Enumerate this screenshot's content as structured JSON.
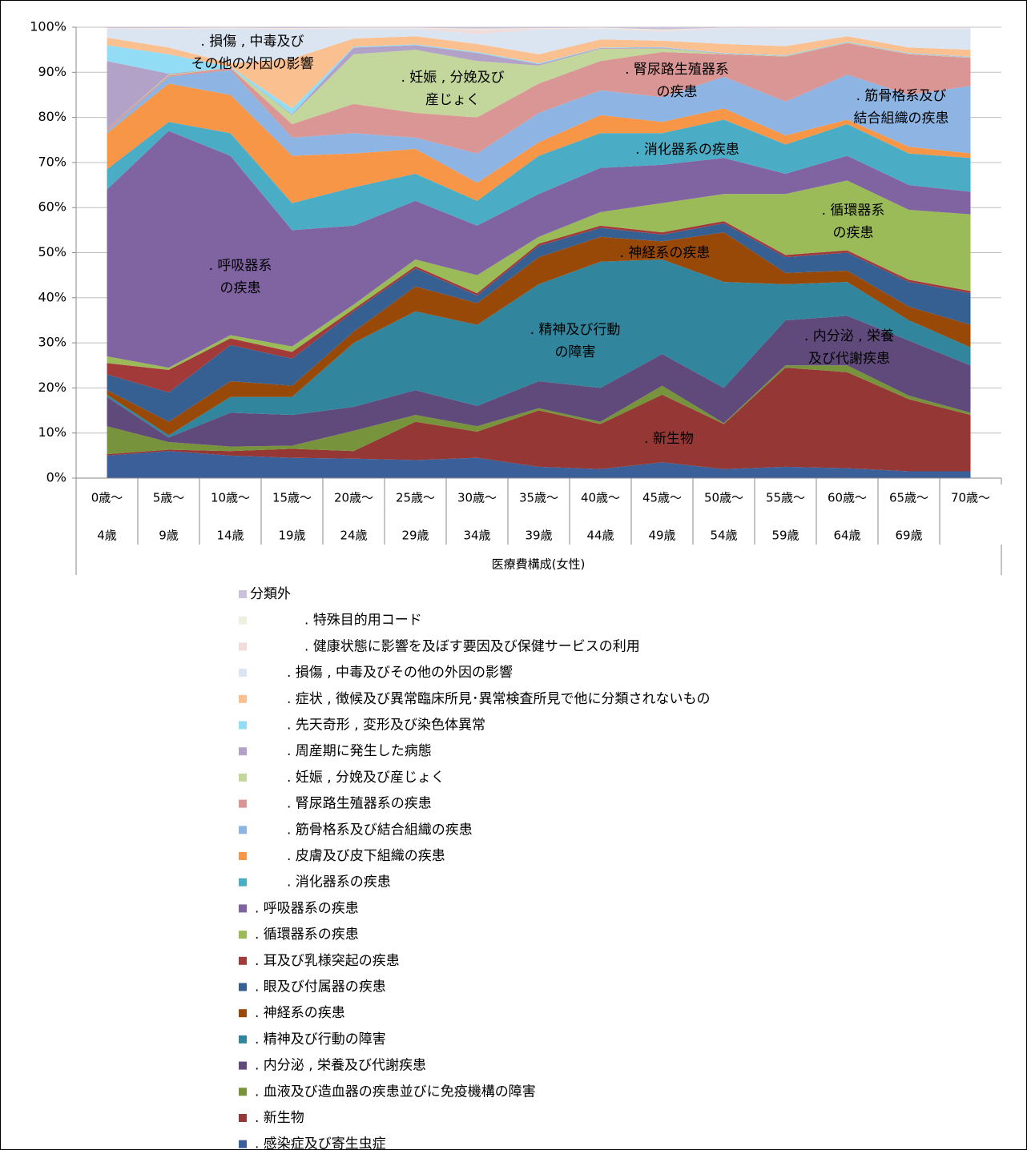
{
  "chart_data": {
    "type": "stacked_area",
    "x_axis_title": "医療費構成(女性)",
    "categories": [
      [
        "0歳～",
        "4歳"
      ],
      [
        "5歳～",
        "9歳"
      ],
      [
        "10歳～",
        "14歳"
      ],
      [
        "15歳～",
        "19歳"
      ],
      [
        "20歳～",
        "24歳"
      ],
      [
        "25歳～",
        "29歳"
      ],
      [
        "30歳～",
        "34歳"
      ],
      [
        "35歳～",
        "39歳"
      ],
      [
        "40歳～",
        "44歳"
      ],
      [
        "45歳～",
        "49歳"
      ],
      [
        "50歳～",
        "54歳"
      ],
      [
        "55歳～",
        "59歳"
      ],
      [
        "60歳～",
        "64歳"
      ],
      [
        "65歳～",
        "69歳"
      ],
      [
        "70歳～"
      ]
    ],
    "ylim": [
      0,
      100
    ],
    "yticks": [
      {
        "value": 0,
        "label": "0%"
      },
      {
        "value": 10,
        "label": "10%"
      },
      {
        "value": 20,
        "label": "20%"
      },
      {
        "value": 30,
        "label": "30%"
      },
      {
        "value": 40,
        "label": "40%"
      },
      {
        "value": 50,
        "label": "50%"
      },
      {
        "value": 60,
        "label": "60%"
      },
      {
        "value": 70,
        "label": "70%"
      },
      {
        "value": 80,
        "label": "80%"
      },
      {
        "value": 90,
        "label": "90%"
      },
      {
        "value": 100,
        "label": "100%"
      }
    ],
    "grid": true,
    "series": [
      {
        "name": ". 感染症及び寄生虫症",
        "color": "#3a5f99",
        "values": [
          5,
          6,
          5,
          4.5,
          4.3,
          4,
          4.5,
          2.5,
          2,
          3.5,
          2,
          2.5,
          2.2,
          1.5,
          1.5
        ]
      },
      {
        "name": ". 新生物",
        "color": "#953735",
        "values": [
          0.3,
          0.3,
          1,
          2,
          1.7,
          8.5,
          5.8,
          12.5,
          10,
          15,
          10,
          22,
          21.3,
          16,
          12.5
        ]
      },
      {
        "name": ". 血液及び造血器の疾患並びに免疫機構の障害",
        "color": "#77933c",
        "values": [
          6.2,
          1.7,
          1,
          0.7,
          4.5,
          1.5,
          1.2,
          0.5,
          0.5,
          2,
          0.2,
          0.5,
          1.5,
          0.8,
          0.5
        ]
      },
      {
        "name": ". 内分泌 , 栄養及び代謝疾患",
        "color": "#604a7b",
        "values": [
          6.5,
          1,
          7.5,
          6.8,
          5.3,
          5.5,
          4.5,
          6,
          7.5,
          7,
          7.8,
          10,
          11,
          12.2,
          10.5
        ]
      },
      {
        "name": ". 精神及び行動の障害",
        "color": "#31859c",
        "values": [
          0.5,
          0.5,
          3.5,
          4,
          14.2,
          17.5,
          18,
          21.5,
          28,
          21,
          23.5,
          8,
          7.5,
          4.5,
          4
        ]
      },
      {
        "name": ". 神経系の疾患",
        "color": "#984807",
        "values": [
          1,
          3,
          3.5,
          2.5,
          2.5,
          5.5,
          4.8,
          6,
          5.5,
          4,
          11,
          2.5,
          2.5,
          3,
          5
        ]
      },
      {
        "name": ". 眼及び付属器の疾患",
        "color": "#376092",
        "values": [
          3.5,
          6.5,
          8,
          6,
          4.5,
          4,
          1.7,
          2.5,
          2,
          1.5,
          2,
          3.5,
          4,
          5.5,
          7
        ]
      },
      {
        "name": ". 耳及び乳様突起の疾患",
        "color": "#a33a3a",
        "values": [
          2.5,
          5,
          1.5,
          1.5,
          0.5,
          0.5,
          0.5,
          0.5,
          0.5,
          0.5,
          0.5,
          0.5,
          0.5,
          0.5,
          0.5
        ]
      },
      {
        "name": ". 循環器系の疾患",
        "color": "#9bbb59",
        "values": [
          1.5,
          0.5,
          0.7,
          1.2,
          1,
          1.5,
          4,
          1.5,
          3,
          6.5,
          6,
          13.5,
          15.5,
          15.5,
          17
        ]
      },
      {
        "name": ". 呼吸器系の疾患",
        "color": "#8064a2",
        "values": [
          37,
          52.5,
          39.8,
          25.8,
          17.5,
          13,
          11,
          9.5,
          9.8,
          8.5,
          8,
          4.5,
          5.5,
          5.5,
          5
        ]
      },
      {
        "name": ". 消化器系の疾患",
        "color": "#4bacc6",
        "values": [
          4.5,
          2,
          5,
          6,
          8.5,
          6,
          5.5,
          8.5,
          7.7,
          7,
          8.5,
          6.5,
          7,
          7,
          7.5
        ]
      },
      {
        "name": ". 皮膚及び皮下組織の疾患",
        "color": "#f79646",
        "values": [
          8,
          8.5,
          8.5,
          10.5,
          7.5,
          5.5,
          4,
          3,
          4,
          2.5,
          2.5,
          2,
          1,
          1.5,
          1
        ]
      },
      {
        "name": ". 筋骨格系及び結合組織の疾患",
        "color": "#8eb4e3",
        "values": [
          0.5,
          1.5,
          5.5,
          4,
          4.5,
          2.5,
          6.5,
          6.5,
          5.5,
          5.5,
          7,
          7.5,
          10,
          11.5,
          15
        ]
      },
      {
        "name": ". 腎尿路生殖器系の疾患",
        "color": "#d99694",
        "values": [
          0.5,
          0.3,
          0.5,
          3,
          6.5,
          5.5,
          8,
          6.5,
          6.5,
          10,
          5,
          10,
          7,
          9,
          6.2
        ]
      },
      {
        "name": ". 妊娠 , 分娩及び産じょく",
        "color": "#c3d69b",
        "values": [
          0,
          0.2,
          0,
          2,
          11,
          14,
          12.5,
          4,
          2.7,
          0.8,
          0.1,
          0.1,
          0.1,
          0.1,
          0.1
        ]
      },
      {
        "name": ". 周産期に発生した病態",
        "color": "#b3a2c7",
        "values": [
          15,
          0.2,
          0,
          0.2,
          1.5,
          1,
          1.8,
          0.3,
          0.2,
          0.2,
          0.1,
          0.1,
          0.1,
          0.1,
          0.1
        ]
      },
      {
        "name": ". 先天奇形 , 変形及び染色体異常",
        "color": "#93dcf6",
        "values": [
          3.5,
          4.3,
          0.2,
          1.3,
          0.2,
          0.2,
          0.2,
          0.2,
          0.1,
          0.1,
          0.1,
          0.1,
          0.1,
          0.1,
          0.1
        ]
      },
      {
        "name": ". 症状 , 徴候及び異常臨床所見･異常検査所見で他に分類されないもの",
        "color": "#fac090",
        "values": [
          1.7,
          1.5,
          0.8,
          11,
          1.8,
          1.8,
          1.8,
          2,
          1.8,
          1.4,
          2,
          2,
          1.2,
          1.2,
          1.5
        ]
      },
      {
        "name": ". 損傷 , 中毒及びその他の外因の影響",
        "color": "#dbe5f1",
        "values": [
          2,
          4,
          7.7,
          6.5,
          2.2,
          1.7,
          2.2,
          5.5,
          2.4,
          2,
          3.5,
          3.9,
          1.7,
          4.2,
          4.7
        ]
      },
      {
        "name": ". 健康状態に影響を及ぼす要因及び保健サービスの利用",
        "color": "#f2dcdb",
        "values": [
          0.1,
          0.2,
          0.1,
          0.2,
          0.1,
          0.1,
          1,
          0.2,
          0.1,
          0.3,
          0.1,
          0.1,
          0.1,
          0.1,
          0.1
        ]
      },
      {
        "name": ". 特殊目的用コード",
        "color": "#ebf1de",
        "values": [
          0,
          0.1,
          0.1,
          0.1,
          0.1,
          0.1,
          0.2,
          0.1,
          0.1,
          0.2,
          0,
          0.1,
          0.1,
          0.1,
          0.1
        ]
      },
      {
        "name": "分類外",
        "color": "#ccc1da",
        "values": [
          0.2,
          0.2,
          0.1,
          0.2,
          0.1,
          0.1,
          0.3,
          0.2,
          0.1,
          0.5,
          0.1,
          0.1,
          0.1,
          0.1,
          0.1
        ]
      }
    ],
    "annotations": [
      {
        "lines": [
          ". 損傷 , 中毒及び",
          "その他の外因の影響"
        ]
      },
      {
        "lines": [
          ". 妊娠 , 分娩及び",
          "産じょく"
        ]
      },
      {
        "lines": [
          ". 腎尿路生殖器系",
          "の疾患"
        ]
      },
      {
        "lines": [
          ". 筋骨格系及び",
          "結合組織の疾患"
        ]
      },
      {
        "lines": [
          ". 消化器系の疾患"
        ]
      },
      {
        "lines": [
          ". 呼吸器系",
          "の疾患"
        ]
      },
      {
        "lines": [
          ". 循環器系",
          "の疾患"
        ]
      },
      {
        "lines": [
          ". 神経系の疾患"
        ]
      },
      {
        "lines": [
          ". 精神及び行動",
          "の障害"
        ]
      },
      {
        "lines": [
          ". 内分泌 , 栄養",
          "及び代謝疾患"
        ]
      },
      {
        "lines": [
          ". 新生物"
        ]
      }
    ]
  }
}
